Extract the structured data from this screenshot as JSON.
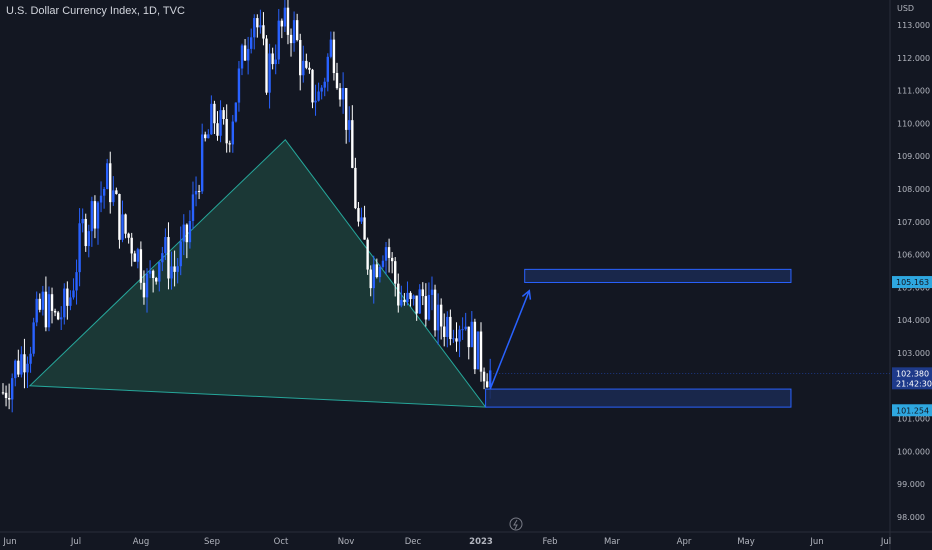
{
  "header": {
    "symbol_line": "U.S. Dollar Currency Index, 1D, TVC"
  },
  "axis": {
    "currency": "USD"
  },
  "colors": {
    "background": "#131722",
    "candle_up": "#2962ff",
    "candle_down": "#ffffff",
    "triangle_fill": "#1b3a38",
    "triangle_stroke": "#26a69a",
    "zone_fill": "#1b2a52",
    "zone_stroke": "#2962ff",
    "arrow": "#2962ff",
    "price_tag": "#1e3a8a",
    "level_tag": "#2ea7e0"
  },
  "chart_data": {
    "type": "candlestick",
    "title": "U.S. Dollar Currency Index, 1D, TVC",
    "ylim": [
      97.6,
      114.0
    ],
    "y_ticks": [
      "113.000",
      "112.000",
      "111.000",
      "110.000",
      "109.000",
      "108.000",
      "107.000",
      "106.000",
      "105.000",
      "104.000",
      "103.000",
      "102.000",
      "101.000",
      "100.000",
      "99.000",
      "98.000"
    ],
    "x_ticks": [
      "Jun",
      "Jul",
      "Aug",
      "Sep",
      "Oct",
      "Nov",
      "Dec",
      "2023",
      "Feb",
      "Mar",
      "Apr",
      "May",
      "Jun",
      "Jul"
    ],
    "close_path": [
      [
        "Jun",
        101.8
      ],
      [
        "Jun",
        102.6
      ],
      [
        "Jun",
        103.3
      ],
      [
        "Jun",
        104.5
      ],
      [
        "Jun",
        104.0
      ],
      [
        "Jul",
        104.5
      ],
      [
        "Jul",
        106.7
      ],
      [
        "Jul",
        107.5
      ],
      [
        "Jul",
        108.3
      ],
      [
        "Jul",
        106.8
      ],
      [
        "Jul",
        106.3
      ],
      [
        "Aug",
        105.0
      ],
      [
        "Aug",
        106.2
      ],
      [
        "Aug",
        105.5
      ],
      [
        "Aug",
        106.5
      ],
      [
        "Sep",
        108.8
      ],
      [
        "Sep",
        110.2
      ],
      [
        "Sep",
        109.5
      ],
      [
        "Sep",
        111.5
      ],
      [
        "Sep",
        113.6
      ],
      [
        "Oct",
        111.5
      ],
      [
        "Oct",
        112.8
      ],
      [
        "Oct",
        113.0
      ],
      [
        "Oct",
        111.2
      ],
      [
        "Oct",
        110.8
      ],
      [
        "Nov",
        112.5
      ],
      [
        "Nov",
        110.5
      ],
      [
        "Nov",
        106.8
      ],
      [
        "Nov",
        105.5
      ],
      [
        "Nov",
        106.5
      ],
      [
        "Dec",
        104.8
      ],
      [
        "Dec",
        104.3
      ],
      [
        "Dec",
        104.8
      ],
      [
        "Dec",
        103.9
      ],
      [
        "Dec",
        104.0
      ],
      [
        "2023",
        104.1
      ],
      [
        "2023",
        103.0
      ],
      [
        "2023",
        102.38
      ]
    ],
    "last_price": {
      "value": "102.380",
      "countdown": "21:42:30"
    },
    "levels": [
      {
        "label": "105.163",
        "value": 105.163
      },
      {
        "label": "101.254",
        "value": 101.254
      }
    ],
    "zones": [
      {
        "name": "target-zone",
        "y_top": 105.55,
        "y_bottom": 105.15,
        "x_start": "2023-01-20",
        "x_end": "2023-05-20"
      },
      {
        "name": "support-zone",
        "y_top": 101.9,
        "y_bottom": 101.35,
        "x_start": "2023-01-03",
        "x_end": "2023-05-20"
      }
    ],
    "triangle": [
      {
        "date": "2022-06-10",
        "price": 102.0
      },
      {
        "date": "2022-10-03",
        "price": 109.5
      },
      {
        "date": "2023-01-03",
        "price": 101.35
      }
    ],
    "arrow": {
      "from": {
        "date": "2023-01-05",
        "price": 101.9
      },
      "to": {
        "date": "2023-01-22",
        "price": 104.9
      }
    }
  }
}
